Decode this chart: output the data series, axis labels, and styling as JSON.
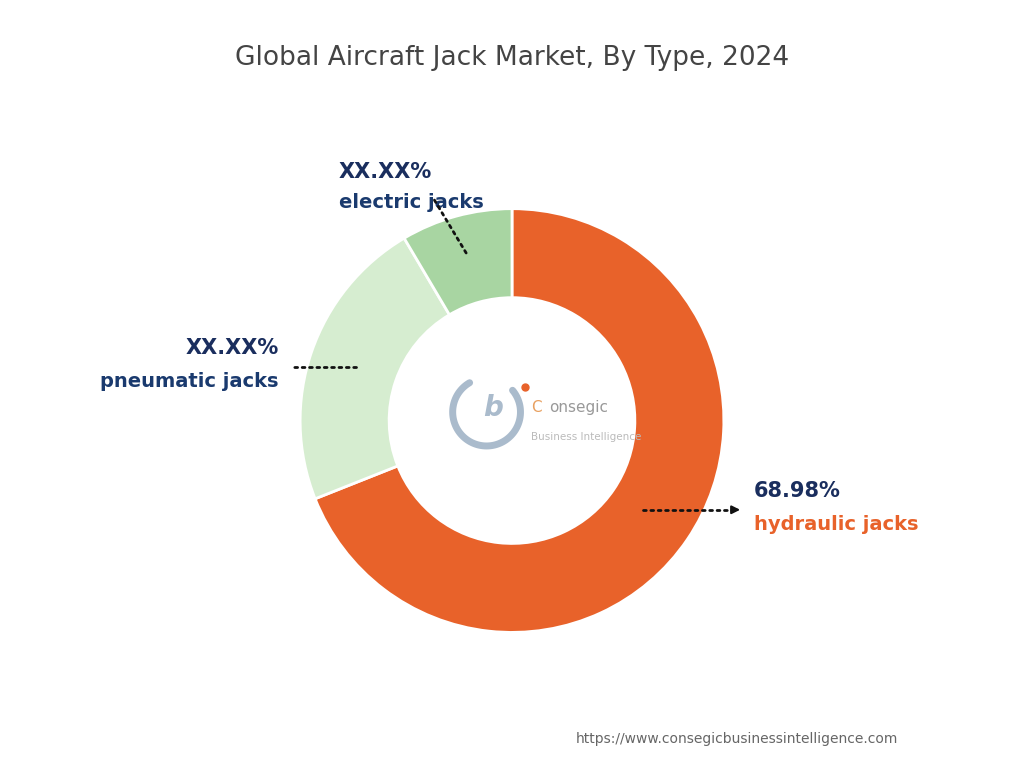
{
  "title": "Global Aircraft Jack Market, By Type, 2024",
  "title_fontsize": 19,
  "title_color": "#444444",
  "segments": [
    {
      "label": "hydraulic jacks",
      "pct_display": "68.98%",
      "value": 68.98,
      "color": "#E8622A"
    },
    {
      "label": "pneumatic jacks",
      "pct_display": "XX.XX%",
      "value": 22.52,
      "color": "#D6EDD0"
    },
    {
      "label": "electric jacks",
      "pct_display": "XX.XX%",
      "value": 8.5,
      "color": "#A8D5A2"
    }
  ],
  "start_angle": 90,
  "donut_width": 0.42,
  "background_color": "#FFFFFF",
  "url_text": "https://www.consegicbusinessintelligence.com",
  "url_color": "#666666",
  "url_fontsize": 10,
  "pct_color": "#1a2e5e",
  "label_color_hydraulic": "#E8622A",
  "label_color_other": "#1a3a6e",
  "arrow_color": "#111111",
  "pct_fontsize": 15,
  "label_fontsize": 14
}
